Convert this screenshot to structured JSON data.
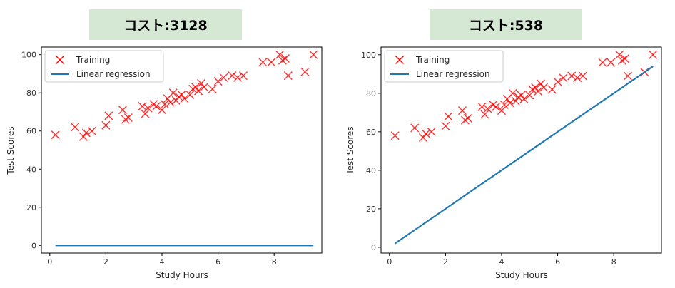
{
  "chart_data": [
    {
      "type": "scatter",
      "title": "コスト:3128",
      "xlabel": "Study Hours",
      "ylabel": "Test Scores",
      "xlim": [
        -0.3,
        9.7
      ],
      "ylim": [
        -4,
        104
      ],
      "xticks": [
        0,
        2,
        4,
        6,
        8
      ],
      "yticks": [
        0,
        20,
        40,
        60,
        80,
        100
      ],
      "legend_position": "top-left",
      "series": [
        {
          "name": "Training",
          "kind": "scatter",
          "marker": "x",
          "color": "#ff0000",
          "x": [
            0.2,
            0.9,
            1.2,
            1.3,
            1.5,
            2.0,
            2.1,
            2.6,
            2.7,
            2.8,
            3.3,
            3.4,
            3.5,
            3.7,
            3.8,
            4.0,
            4.1,
            4.2,
            4.3,
            4.4,
            4.5,
            4.6,
            4.7,
            4.8,
            5.0,
            5.1,
            5.2,
            5.3,
            5.4,
            5.5,
            5.8,
            6.0,
            6.2,
            6.5,
            6.7,
            6.9,
            7.6,
            7.9,
            8.2,
            8.3,
            8.4,
            8.5,
            9.1,
            9.4
          ],
          "y": [
            58,
            62,
            57,
            59,
            60,
            63,
            68,
            71,
            66,
            67,
            73,
            69,
            72,
            74,
            73,
            71,
            74,
            77,
            75,
            80,
            76,
            78,
            79,
            77,
            79,
            82,
            83,
            81,
            85,
            83,
            82,
            86,
            88,
            89,
            88,
            89,
            96,
            96,
            100,
            97,
            98,
            89,
            91,
            100
          ]
        },
        {
          "name": "Linear regression",
          "kind": "line",
          "color": "#1f77b4",
          "x": [
            0.2,
            9.4
          ],
          "y": [
            0,
            0
          ]
        }
      ]
    },
    {
      "type": "scatter",
      "title": "コスト:538",
      "xlabel": "Study Hours",
      "ylabel": "Test Scores",
      "xlim": [
        -0.3,
        9.7
      ],
      "ylim": [
        -3,
        104
      ],
      "xticks": [
        0,
        2,
        4,
        6,
        8
      ],
      "yticks": [
        0,
        20,
        40,
        60,
        80,
        100
      ],
      "legend_position": "top-left",
      "series": [
        {
          "name": "Training",
          "kind": "scatter",
          "marker": "x",
          "color": "#ff0000",
          "x": [
            0.2,
            0.9,
            1.2,
            1.3,
            1.5,
            2.0,
            2.1,
            2.6,
            2.7,
            2.8,
            3.3,
            3.4,
            3.5,
            3.7,
            3.8,
            4.0,
            4.1,
            4.2,
            4.3,
            4.4,
            4.5,
            4.6,
            4.7,
            4.8,
            5.0,
            5.1,
            5.2,
            5.3,
            5.4,
            5.5,
            5.8,
            6.0,
            6.2,
            6.5,
            6.7,
            6.9,
            7.6,
            7.9,
            8.2,
            8.3,
            8.4,
            8.5,
            9.1,
            9.4
          ],
          "y": [
            58,
            62,
            57,
            59,
            60,
            63,
            68,
            71,
            66,
            67,
            73,
            69,
            72,
            74,
            73,
            71,
            74,
            77,
            75,
            80,
            76,
            78,
            79,
            77,
            79,
            82,
            83,
            81,
            85,
            83,
            82,
            86,
            88,
            89,
            88,
            89,
            96,
            96,
            100,
            97,
            98,
            89,
            91,
            100
          ]
        },
        {
          "name": "Linear regression",
          "kind": "line",
          "color": "#1f77b4",
          "x": [
            0.2,
            9.4
          ],
          "y": [
            2,
            94
          ]
        }
      ]
    }
  ]
}
